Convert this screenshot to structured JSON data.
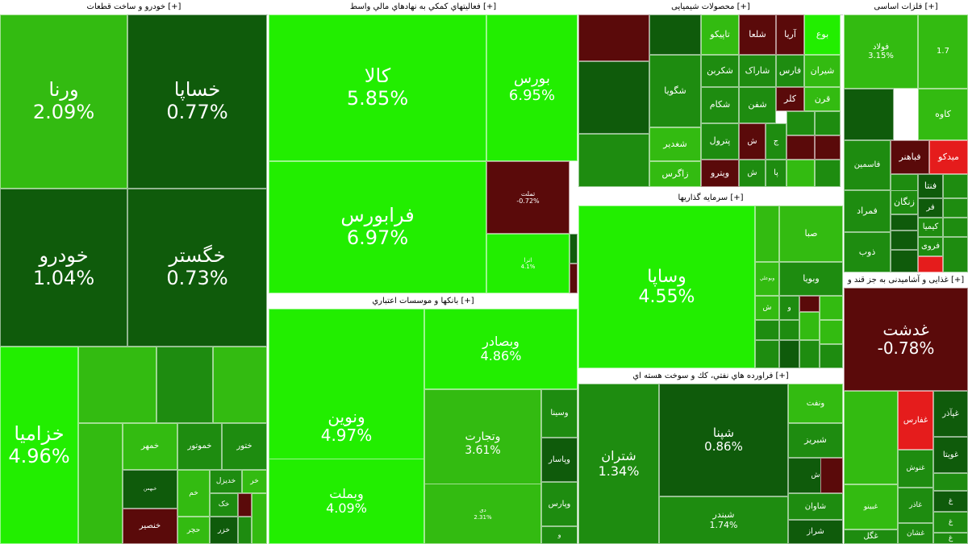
{
  "chart_data": {
    "type": "treemap",
    "colors": {
      "strong_green": "#22ee00",
      "green": "#33bb11",
      "mid_green": "#1e8c10",
      "dark_green": "#0f5b0b",
      "dark_red": "#5a0a0a",
      "red": "#e51c1c"
    },
    "sectors": [
      {
        "title": "خودرو و ساخت قطعات [+]",
        "tiles": [
          {
            "name": "ورنا",
            "change": "2.09%",
            "color": "#33bb11"
          },
          {
            "name": "خساپا",
            "change": "0.77%",
            "color": "#0f5b0b"
          },
          {
            "name": "خودرو",
            "change": "1.04%",
            "color": "#0f5b0b"
          },
          {
            "name": "خگستر",
            "change": "0.73%",
            "color": "#0f5b0b"
          },
          {
            "name": "خزامیا",
            "change": "4.96%",
            "color": "#22ee00"
          },
          {
            "name": "",
            "change": "",
            "color": "#33bb11"
          },
          {
            "name": "",
            "change": "",
            "color": "#1e8c10"
          },
          {
            "name": "",
            "change": "",
            "color": "#33bb11"
          },
          {
            "name": "",
            "change": "",
            "color": "#33bb11"
          },
          {
            "name": "خمهر",
            "change": "",
            "color": "#33bb11"
          },
          {
            "name": "خموتور",
            "change": "",
            "color": "#1e8c10"
          },
          {
            "name": "ختور",
            "change": "",
            "color": "#1e8c10"
          },
          {
            "name": "",
            "change": "",
            "color": "#22ee00"
          },
          {
            "name": "خبهمن",
            "change": "",
            "color": "#0f5b0b"
          },
          {
            "name": "خم",
            "change": "",
            "color": "#33bb11"
          },
          {
            "name": "خدیزل",
            "change": "",
            "color": "#1e8c10"
          },
          {
            "name": "خر",
            "change": "",
            "color": "#33bb11"
          },
          {
            "name": "خنصیر",
            "change": "",
            "color": "#5a0a0a"
          },
          {
            "name": "خک",
            "change": "",
            "color": "#1e8c10"
          },
          {
            "name": "",
            "change": "",
            "color": "#5a0a0a"
          },
          {
            "name": "حچر",
            "change": "",
            "color": "#33bb11"
          },
          {
            "name": "خزر",
            "change": "",
            "color": "#0f5b0b"
          },
          {
            "name": "",
            "change": "",
            "color": "#1e8c10"
          },
          {
            "name": "",
            "change": "",
            "color": "#33bb11"
          }
        ]
      },
      {
        "title": "فعالیتهاي كمكي به نهادهاي مالي واسط [+]",
        "tiles": [
          {
            "name": "کالا",
            "change": "5.85%",
            "color": "#22ee00"
          },
          {
            "name": "بورس",
            "change": "6.95%",
            "color": "#22ee00"
          },
          {
            "name": "فرابورس",
            "change": "6.97%",
            "color": "#22ee00"
          },
          {
            "name": "تملت",
            "change": "-0.72%",
            "color": "#5a0a0a"
          },
          {
            "name": "اترا",
            "change": "4.1%",
            "color": "#22ee00"
          },
          {
            "name": "",
            "change": "",
            "color": "#0f5b0b"
          },
          {
            "name": "",
            "change": "",
            "color": "#5a0a0a"
          }
        ]
      },
      {
        "title": "محصولات شیمیایی [+]",
        "tiles": [
          {
            "name": "",
            "change": "",
            "color": "#5a0a0a"
          },
          {
            "name": "",
            "change": "",
            "color": "#0f5b0b"
          },
          {
            "name": "",
            "change": "",
            "color": "#0f5b0b"
          },
          {
            "name": "",
            "change": "",
            "color": "#1e8c10"
          },
          {
            "name": "تاپیکو",
            "change": "",
            "color": "#33bb11"
          },
          {
            "name": "شلعا",
            "change": "",
            "color": "#5a0a0a"
          },
          {
            "name": "آریا",
            "change": "",
            "color": "#5a0a0a"
          },
          {
            "name": "بوع",
            "change": "",
            "color": "#22ee00"
          },
          {
            "name": "شگویا",
            "change": "",
            "color": "#1e8c10"
          },
          {
            "name": "شکربن",
            "change": "",
            "color": "#1e8c10"
          },
          {
            "name": "شاراک",
            "change": "",
            "color": "#1e8c10"
          },
          {
            "name": "فارس",
            "change": "",
            "color": "#1e8c10"
          },
          {
            "name": "شیران",
            "change": "",
            "color": "#33bb11"
          },
          {
            "name": "شکام",
            "change": "",
            "color": "#1e8c10"
          },
          {
            "name": "شفن",
            "change": "",
            "color": "#1e8c10"
          },
          {
            "name": "کلر",
            "change": "",
            "color": "#5a0a0a"
          },
          {
            "name": "قرن",
            "change": "",
            "color": "#33bb11"
          },
          {
            "name": "شغدیر",
            "change": "",
            "color": "#33bb11"
          },
          {
            "name": "پترول",
            "change": "",
            "color": "#1e8c10"
          },
          {
            "name": "ش",
            "change": "",
            "color": "#5a0a0a"
          },
          {
            "name": "ج",
            "change": "",
            "color": "#1e8c10"
          },
          {
            "name": "",
            "change": "",
            "color": "#1e8c10"
          },
          {
            "name": "",
            "change": "",
            "color": "#1e8c10"
          },
          {
            "name": "",
            "change": "",
            "color": "#5a0a0a"
          },
          {
            "name": "",
            "change": "",
            "color": "#5a0a0a"
          },
          {
            "name": "زاگرس",
            "change": "",
            "color": "#33bb11"
          },
          {
            "name": "ویترو",
            "change": "",
            "color": "#5a0a0a"
          },
          {
            "name": "ش",
            "change": "",
            "color": "#1e8c10"
          },
          {
            "name": "پا",
            "change": "",
            "color": "#1e8c10"
          },
          {
            "name": "",
            "change": "",
            "color": "#33bb11"
          },
          {
            "name": "",
            "change": "",
            "color": "#1e8c10"
          }
        ]
      },
      {
        "title": "فلزات اساسی [+]",
        "tiles": [
          {
            "name": "فولاد",
            "change": "3.15%",
            "color": "#33bb11"
          },
          {
            "name": "",
            "change": "1.7",
            "color": "#33bb11"
          },
          {
            "name": "",
            "change": "",
            "color": "#0f5b0b"
          },
          {
            "name": "کاوه",
            "change": "",
            "color": "#33bb11"
          },
          {
            "name": "فاسمین",
            "change": "",
            "color": "#1e8c10"
          },
          {
            "name": "فباهنر",
            "change": "",
            "color": "#5a0a0a"
          },
          {
            "name": "میدکو",
            "change": "",
            "color": "#e51c1c"
          },
          {
            "name": "",
            "change": "",
            "color": "#1e8c10"
          },
          {
            "name": "زنگان",
            "change": "",
            "color": "#1e8c10"
          },
          {
            "name": "فنتا",
            "change": "",
            "color": "#0f5b0b"
          },
          {
            "name": "",
            "change": "",
            "color": "#1e8c10"
          },
          {
            "name": "فمراد",
            "change": "",
            "color": "#1e8c10"
          },
          {
            "name": "فر",
            "change": "",
            "color": "#0f5b0b"
          },
          {
            "name": "",
            "change": "",
            "color": "#1e8c10"
          },
          {
            "name": "",
            "change": "",
            "color": "#0f5b0b"
          },
          {
            "name": "کیمیا",
            "change": "",
            "color": "#1e8c10"
          },
          {
            "name": "",
            "change": "",
            "color": "#1e8c10"
          },
          {
            "name": "",
            "change": "",
            "color": "#0f5b0b"
          },
          {
            "name": "ذوب",
            "change": "",
            "color": "#1e8c10"
          },
          {
            "name": "فروی",
            "change": "",
            "color": "#1e8c10"
          },
          {
            "name": "",
            "change": "",
            "color": "#1e8c10"
          },
          {
            "name": "",
            "change": "",
            "color": "#e51c1c"
          },
          {
            "name": "",
            "change": "",
            "color": "#0f5b0b"
          }
        ]
      },
      {
        "title": "بانكها و موسسات اعتباري [+]",
        "tiles": [
          {
            "name": "ونوین",
            "change": "4.97%",
            "color": "#22ee00"
          },
          {
            "name": "وبصادر",
            "change": "4.86%",
            "color": "#22ee00"
          },
          {
            "name": "وتجارت",
            "change": "3.61%",
            "color": "#33bb11"
          },
          {
            "name": "وسینا",
            "change": "",
            "color": "#1e8c10"
          },
          {
            "name": "وبملت",
            "change": "4.09%",
            "color": "#22ee00"
          },
          {
            "name": "وپاسار",
            "change": "",
            "color": "#0f5b0b"
          },
          {
            "name": "دی",
            "change": "2.31%",
            "color": "#33bb11"
          },
          {
            "name": "وپارس",
            "change": "",
            "color": "#1e8c10"
          },
          {
            "name": "و",
            "change": "",
            "color": "#1e8c10"
          }
        ]
      },
      {
        "title": "سرمایه گذاریها [+]",
        "tiles": [
          {
            "name": "وساپا",
            "change": "4.55%",
            "color": "#22ee00"
          },
          {
            "name": "",
            "change": "",
            "color": "#33bb11"
          },
          {
            "name": "صبا",
            "change": "",
            "color": "#33bb11"
          },
          {
            "name": "وبوعلي",
            "change": "",
            "color": "#33bb11"
          },
          {
            "name": "وبویا",
            "change": "",
            "color": "#1e8c10"
          },
          {
            "name": "ش",
            "change": "",
            "color": "#33bb11"
          },
          {
            "name": "و",
            "change": "",
            "color": "#1e8c10"
          },
          {
            "name": "",
            "change": "",
            "color": "#5a0a0a"
          },
          {
            "name": "",
            "change": "",
            "color": "#33bb11"
          },
          {
            "name": "",
            "change": "",
            "color": "#1e8c10"
          },
          {
            "name": "",
            "change": "",
            "color": "#1e8c10"
          },
          {
            "name": "",
            "change": "",
            "color": "#33bb11"
          },
          {
            "name": "",
            "change": "",
            "color": "#1e8c10"
          },
          {
            "name": "",
            "change": "",
            "color": "#0f5b0b"
          },
          {
            "name": "",
            "change": "",
            "color": "#1e8c10"
          },
          {
            "name": "",
            "change": "",
            "color": "#33bb11"
          },
          {
            "name": "",
            "change": "",
            "color": "#1e8c10"
          },
          {
            "name": "",
            "change": "",
            "color": "#5a0a0a"
          },
          {
            "name": "",
            "change": "",
            "color": "#33bb11"
          },
          {
            "name": "",
            "change": "",
            "color": "#1e8c10"
          }
        ]
      },
      {
        "title": "غذایی و آشامیدنی به جز قند و [+]",
        "tiles": [
          {
            "name": "غدشت",
            "change": "-0.78%",
            "color": "#5a0a0a"
          },
          {
            "name": "",
            "change": "",
            "color": "#33bb11"
          },
          {
            "name": "غفارس",
            "change": "",
            "color": "#e51c1c"
          },
          {
            "name": "غپآذر",
            "change": "",
            "color": "#0f5b0b"
          },
          {
            "name": "غنوش",
            "change": "",
            "color": "#1e8c10"
          },
          {
            "name": "غویتا",
            "change": "",
            "color": "#0f5b0b"
          },
          {
            "name": "",
            "change": "",
            "color": "#1e8c10"
          },
          {
            "name": "غبینو",
            "change": "",
            "color": "#33bb11"
          },
          {
            "name": "غاذر",
            "change": "",
            "color": "#1e8c10"
          },
          {
            "name": "غ",
            "change": "",
            "color": "#0f5b0b"
          },
          {
            "name": "غزر",
            "change": "",
            "color": "#1e8c10"
          },
          {
            "name": "غ",
            "change": "",
            "color": "#1e8c10"
          },
          {
            "name": "غگل",
            "change": "",
            "color": "#1e8c10"
          },
          {
            "name": "غشان",
            "change": "",
            "color": "#1e8c10"
          },
          {
            "name": "غ",
            "change": "",
            "color": "#1e8c10"
          }
        ]
      },
      {
        "title": "فراورده هاي نفتي، كك و سوخت هسته اي [+]",
        "tiles": [
          {
            "name": "شتران",
            "change": "1.34%",
            "color": "#1e8c10"
          },
          {
            "name": "شپنا",
            "change": "0.86%",
            "color": "#0f5b0b"
          },
          {
            "name": "ونفت",
            "change": "",
            "color": "#33bb11"
          },
          {
            "name": "شبریز",
            "change": "",
            "color": "#1e8c10"
          },
          {
            "name": "ش",
            "change": "",
            "color": "#0f5b0b"
          },
          {
            "name": "",
            "change": "",
            "color": "#5a0a0a"
          },
          {
            "name": "شبندر",
            "change": "1.74%",
            "color": "#1e8c10"
          },
          {
            "name": "شاوان",
            "change": "",
            "color": "#1e8c10"
          },
          {
            "name": "شراز",
            "change": "",
            "color": "#0f5b0b"
          }
        ]
      }
    ]
  }
}
